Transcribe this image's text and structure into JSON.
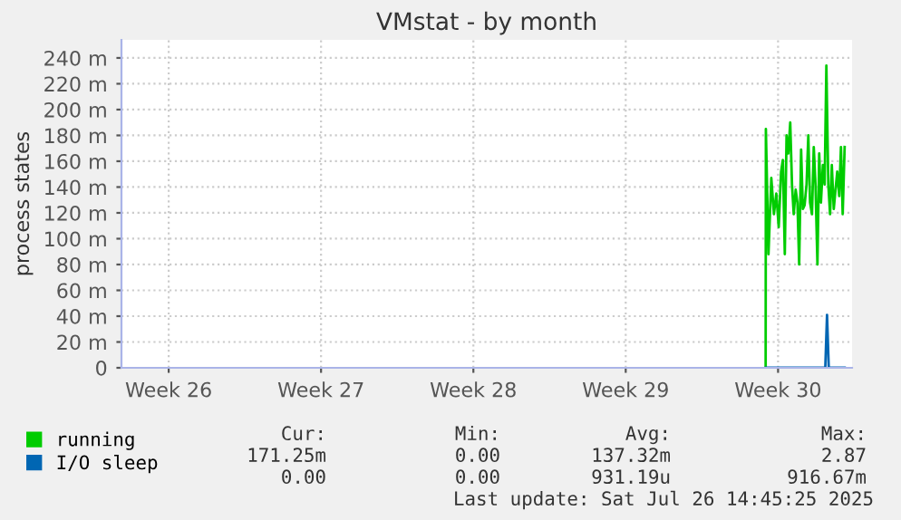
{
  "chart_data": {
    "type": "line",
    "title": "VMstat - by month",
    "ylabel": "process states",
    "xlim": [
      "2025-06-24T07:55",
      "2025-07-27T21:36"
    ],
    "ylim": [
      0,
      254
    ],
    "xticks": [
      {
        "value": "2025-06-26T12:00",
        "label": "Week 26"
      },
      {
        "value": "2025-07-03T12:00",
        "label": "Week 27"
      },
      {
        "value": "2025-07-10T12:00",
        "label": "Week 28"
      },
      {
        "value": "2025-07-17T12:00",
        "label": "Week 29"
      },
      {
        "value": "2025-07-24T12:00",
        "label": "Week 30"
      }
    ],
    "yticks": [
      0,
      {
        "value": 20,
        "label": "20 m"
      },
      {
        "value": 40,
        "label": "40 m"
      },
      {
        "value": 60,
        "label": "60 m"
      },
      {
        "value": 80,
        "label": "80 m"
      },
      {
        "value": 100,
        "label": "100 m"
      },
      {
        "value": 120,
        "label": "120 m"
      },
      {
        "value": 140,
        "label": "140 m"
      },
      {
        "value": 160,
        "label": "160 m"
      },
      {
        "value": 180,
        "label": "180 m"
      },
      {
        "value": 200,
        "label": "200 m"
      },
      {
        "value": 220,
        "label": "220 m"
      },
      {
        "value": 240,
        "label": "240 m"
      }
    ],
    "grid": true,
    "legend": "bottom left",
    "series": [
      {
        "name": "running",
        "color": "#00cc00",
        "x": [
          "2025-07-23T22:19",
          "2025-07-23T22:34",
          "2025-07-24T01:26",
          "2025-07-24T04:34",
          "2025-07-24T07:26",
          "2025-07-24T10:05",
          "2025-07-24T12:43",
          "2025-07-24T15:22",
          "2025-07-24T17:17",
          "2025-07-24T19:26",
          "2025-07-24T21:22",
          "2025-07-24T23:17",
          "2025-07-25T01:26",
          "2025-07-25T03:22",
          "2025-07-25T05:17",
          "2025-07-25T07:26",
          "2025-07-25T09:22",
          "2025-07-25T11:17",
          "2025-07-25T13:26",
          "2025-07-25T15:22",
          "2025-07-25T17:17",
          "2025-07-25T19:26",
          "2025-07-25T21:22",
          "2025-07-25T23:17",
          "2025-07-26T01:26",
          "2025-07-26T03:22",
          "2025-07-26T05:17",
          "2025-07-26T07:26",
          "2025-07-26T09:22",
          "2025-07-26T11:17",
          "2025-07-26T13:26",
          "2025-07-26T15:22",
          "2025-07-26T17:17",
          "2025-07-26T19:26",
          "2025-07-26T21:22",
          "2025-07-26T23:17",
          "2025-07-27T01:26",
          "2025-07-27T03:22",
          "2025-07-27T05:17",
          "2025-07-27T07:26",
          "2025-07-27T09:22",
          "2025-07-27T11:17",
          "2025-07-27T13:26"
        ],
        "values": [
          0,
          185,
          88,
          147,
          119,
          135,
          109,
          152,
          161,
          88,
          180,
          166,
          190,
          142,
          119,
          138,
          128,
          80,
          169,
          123,
          126,
          142,
          180,
          128,
          119,
          171,
          142,
          80,
          166,
          128,
          157,
          142,
          234,
          142,
          119,
          157,
          123,
          138,
          152,
          133,
          171,
          119,
          171
        ]
      },
      {
        "name": "I/O sleep",
        "color": "#0066b3",
        "x": [
          "2025-07-23T22:34",
          "2025-07-26T16:05",
          "2025-07-26T18:00",
          "2025-07-26T19:55",
          "2025-07-27T13:26"
        ],
        "values": [
          0,
          0,
          41,
          0,
          0
        ]
      }
    ],
    "annotations": [
      "Cur:",
      "Min:",
      "Avg:",
      "Max:",
      "171.25m",
      "0.00",
      "137.32m",
      "2.87",
      "0.00",
      "0.00",
      "931.19u",
      "916.67m",
      "Last update: Sat Jul 26 14:45:25 2025"
    ]
  }
}
